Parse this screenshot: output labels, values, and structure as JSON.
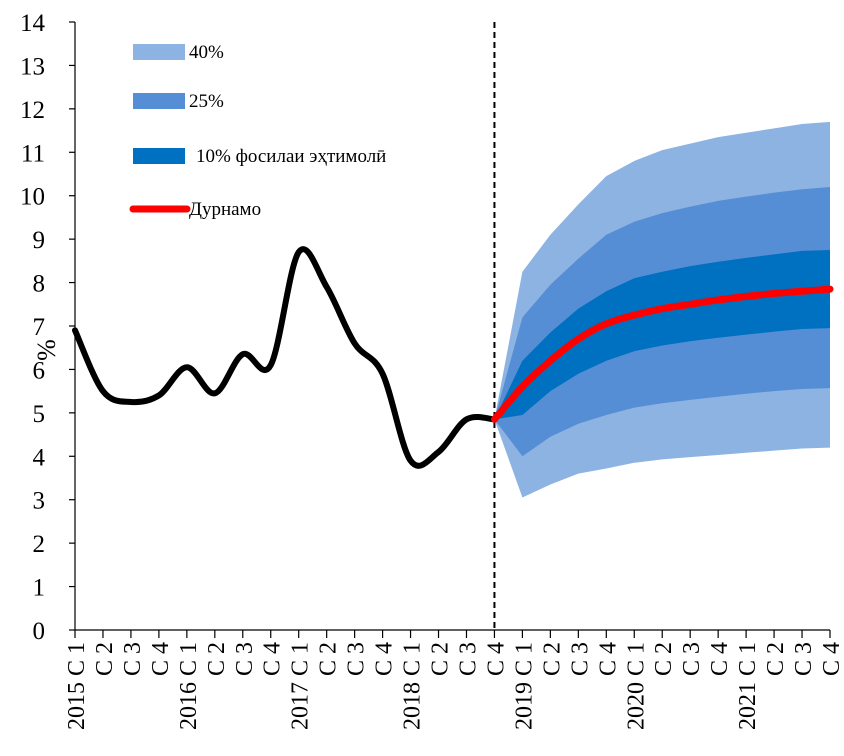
{
  "chart_data": {
    "type": "area",
    "ylabel": "%",
    "ylim": [
      0,
      14
    ],
    "yticks": [
      0,
      1,
      2,
      3,
      4,
      5,
      6,
      7,
      8,
      9,
      10,
      11,
      12,
      13,
      14
    ],
    "x_labels": [
      "2015 С 1",
      "С 2",
      "С 3",
      "С 4",
      "2016 С 1",
      "С 2",
      "С 3",
      "С 4",
      "2017 С 1",
      "С 2",
      "С 3",
      "С 4",
      "2018 С 1",
      "С 2",
      "С 3",
      "С 4",
      "2019 С 1",
      "С 2",
      "С 3",
      "С 4",
      "2020 С 1",
      "С 2",
      "С 3",
      "С 4",
      "2021 С 1",
      "С 2",
      "С 3",
      "С 4"
    ],
    "forecast_start_index": 15,
    "colors": {
      "band40": "#8db3e2",
      "band25": "#558ed5",
      "band10": "#0070c0",
      "actual": "#000000",
      "baseline": "#ff0000"
    },
    "legend": [
      {
        "label": "40%",
        "key": "band40"
      },
      {
        "label": "25%",
        "key": "band25"
      },
      {
        "label": "10% фосилаи эҳтимолӣ",
        "key": "band10"
      },
      {
        "label": "Дурнамо",
        "key": "baseline"
      }
    ],
    "actual": {
      "name": "",
      "x_index": [
        0,
        1,
        2,
        3,
        4,
        5,
        6,
        7,
        8,
        9,
        10,
        11,
        12,
        13,
        14,
        15
      ],
      "values": [
        6.9,
        5.5,
        5.25,
        5.4,
        6.05,
        5.45,
        6.35,
        6.1,
        8.7,
        7.9,
        6.6,
        5.9,
        3.9,
        4.1,
        4.85,
        4.85
      ]
    },
    "forecast": {
      "x_index": [
        15,
        16,
        17,
        18,
        19,
        20,
        21,
        22,
        23,
        24,
        25,
        26,
        27
      ],
      "baseline": [
        4.85,
        5.6,
        6.2,
        6.7,
        7.05,
        7.25,
        7.4,
        7.5,
        7.6,
        7.68,
        7.75,
        7.8,
        7.85
      ],
      "band10_upper": [
        4.85,
        6.2,
        6.85,
        7.4,
        7.8,
        8.1,
        8.25,
        8.38,
        8.48,
        8.57,
        8.65,
        8.73,
        8.75
      ],
      "band10_lower": [
        4.85,
        4.95,
        5.5,
        5.9,
        6.2,
        6.42,
        6.55,
        6.65,
        6.73,
        6.8,
        6.87,
        6.93,
        6.95
      ],
      "band25_upper": [
        4.85,
        7.2,
        7.95,
        8.55,
        9.1,
        9.4,
        9.6,
        9.75,
        9.88,
        9.98,
        10.07,
        10.15,
        10.2
      ],
      "band25_lower": [
        4.85,
        4.0,
        4.45,
        4.75,
        4.95,
        5.12,
        5.22,
        5.3,
        5.37,
        5.44,
        5.5,
        5.55,
        5.57
      ],
      "band40_upper": [
        4.85,
        8.25,
        9.1,
        9.8,
        10.45,
        10.8,
        11.05,
        11.2,
        11.35,
        11.45,
        11.55,
        11.65,
        11.7
      ],
      "band40_lower": [
        4.85,
        3.05,
        3.35,
        3.6,
        3.72,
        3.85,
        3.93,
        3.98,
        4.03,
        4.08,
        4.13,
        4.18,
        4.2
      ]
    }
  }
}
